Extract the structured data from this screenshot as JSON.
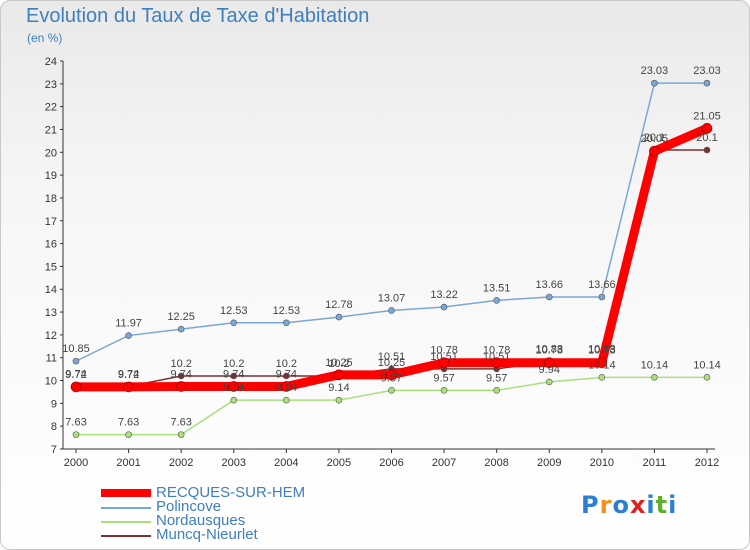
{
  "chart_data": {
    "type": "line",
    "title": "Evolution du Taux de Taxe d'Habitation",
    "subtitle": "(en %)",
    "xlabel": "",
    "ylabel": "",
    "ylim": [
      7,
      24
    ],
    "yticks": [
      7,
      8,
      9,
      10,
      11,
      12,
      13,
      14,
      15,
      16,
      17,
      18,
      19,
      20,
      21,
      22,
      23,
      24
    ],
    "categories": [
      "2000",
      "2001",
      "2002",
      "2003",
      "2004",
      "2005",
      "2006",
      "2007",
      "2008",
      "2009",
      "2010",
      "2011",
      "2012"
    ],
    "grid": false,
    "legend_position": "bottom-left",
    "series": [
      {
        "name": "RECQUES-SUR-HEM",
        "color": "#ff0000",
        "values": [
          9.72,
          9.72,
          9.74,
          9.74,
          9.74,
          10.25,
          10.25,
          10.78,
          10.78,
          10.78,
          10.78,
          20.05,
          21.05
        ],
        "labels": [
          "9.72",
          "9.72",
          "9.74",
          "9.74",
          "9.74",
          "10.25",
          "10.25",
          "10.78",
          "10.78",
          "10.78",
          "10.78",
          "20.05",
          "21.05"
        ]
      },
      {
        "name": "Polincove",
        "color": "#7aa7d6",
        "values": [
          10.85,
          11.97,
          12.25,
          12.53,
          12.53,
          12.78,
          13.07,
          13.22,
          13.51,
          13.66,
          13.66,
          23.03,
          23.03
        ],
        "labels": [
          "10.85",
          "11.97",
          "12.25",
          "12.53",
          "12.53",
          "12.78",
          "13.07",
          "13.22",
          "13.51",
          "13.66",
          "13.66",
          "23.03",
          "23.03"
        ]
      },
      {
        "name": "Nordausques",
        "color": "#a8e07a",
        "values": [
          7.63,
          7.63,
          7.63,
          9.14,
          9.14,
          9.14,
          9.57,
          9.57,
          9.57,
          9.94,
          10.14,
          10.14,
          10.14
        ],
        "labels": [
          "7.63",
          "7.63",
          "7.63",
          "9.14",
          "9.14",
          "9.14",
          "9.57",
          "9.57",
          "9.57",
          "9.94",
          "10.14",
          "10.14",
          "10.14"
        ]
      },
      {
        "name": "Muncq-Nieurlet",
        "color": "#7a3030",
        "values": [
          9.74,
          9.74,
          10.2,
          10.2,
          10.2,
          10.2,
          10.51,
          10.51,
          10.51,
          10.83,
          10.83,
          20.1,
          20.1
        ],
        "labels": [
          "9.74",
          "9.74",
          "10.2",
          "10.2",
          "10.2",
          "10.2",
          "10.51",
          "10.51",
          "10.51",
          "10.83",
          "10.83",
          "20.1",
          "20.1"
        ]
      }
    ]
  },
  "logo": {
    "text": "Proxiti"
  }
}
